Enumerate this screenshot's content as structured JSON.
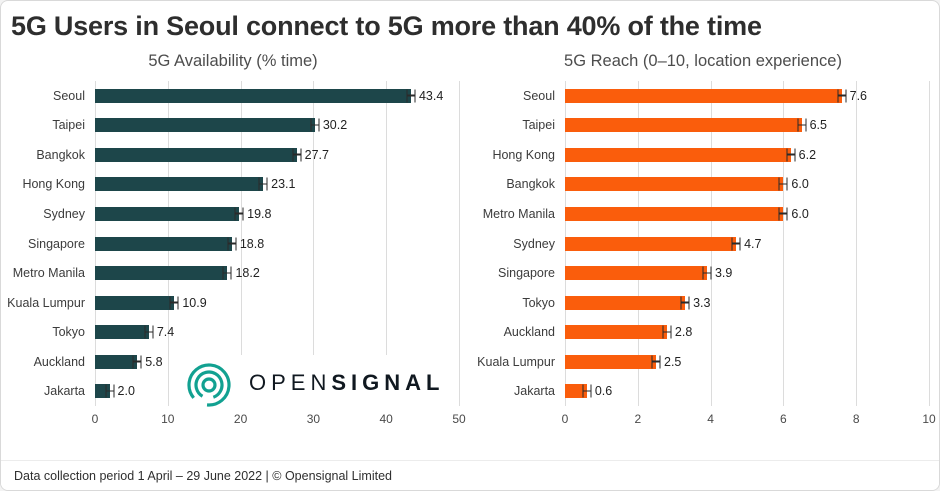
{
  "page": {
    "title": "5G Users in Seoul connect to 5G more than 40% of the time",
    "footer": "Data collection period 1 April – 29 June 2022  |  © Opensignal Limited"
  },
  "logo": {
    "open": "OPEN",
    "signal": "SIGNAL",
    "color": "#12a191"
  },
  "chart_data": [
    {
      "type": "bar",
      "orientation": "horizontal",
      "title": "5G Availability (% time)",
      "categories": [
        "Seoul",
        "Taipei",
        "Bangkok",
        "Hong Kong",
        "Sydney",
        "Singapore",
        "Metro Manila",
        "Kuala Lumpur",
        "Tokyo",
        "Auckland",
        "Jakarta"
      ],
      "values": [
        43.4,
        30.2,
        27.7,
        23.1,
        19.8,
        18.8,
        18.2,
        10.9,
        7.4,
        5.8,
        2.0
      ],
      "xlim": [
        0,
        50
      ],
      "xticks": [
        0,
        10,
        20,
        30,
        40,
        50
      ],
      "bar_color": "#1d464a",
      "grid": true,
      "error_bars": true,
      "legend": "none"
    },
    {
      "type": "bar",
      "orientation": "horizontal",
      "title": "5G Reach (0–10, location experience)",
      "categories": [
        "Seoul",
        "Taipei",
        "Hong Kong",
        "Bangkok",
        "Metro Manila",
        "Sydney",
        "Singapore",
        "Tokyo",
        "Auckland",
        "Kuala Lumpur",
        "Jakarta"
      ],
      "values": [
        7.6,
        6.5,
        6.2,
        6.0,
        6.0,
        4.7,
        3.9,
        3.3,
        2.8,
        2.5,
        0.6
      ],
      "xlim": [
        0,
        10
      ],
      "xticks": [
        0,
        2,
        4,
        6,
        8,
        10
      ],
      "bar_color": "#fa5d0c",
      "grid": true,
      "error_bars": true,
      "legend": "none"
    }
  ]
}
